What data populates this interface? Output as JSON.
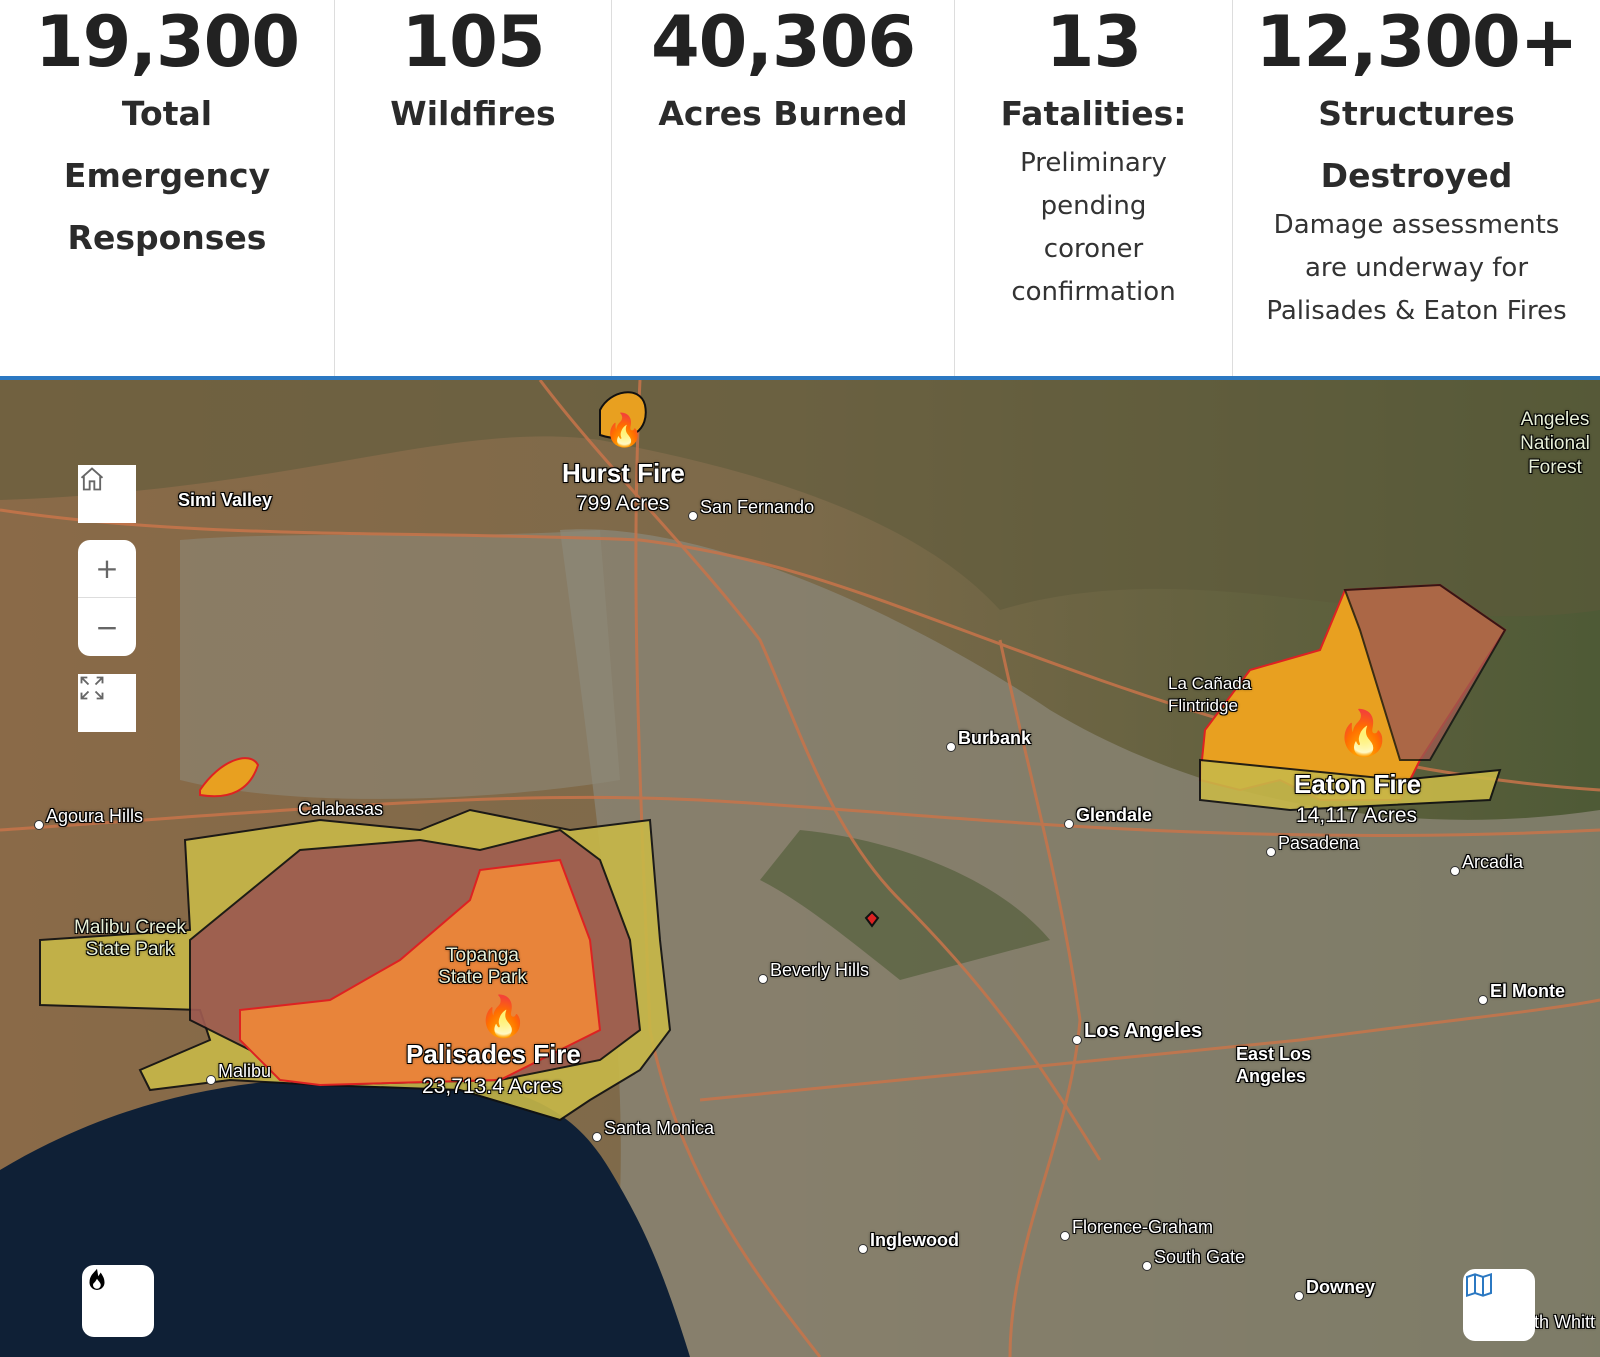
{
  "stats": [
    {
      "number": "19,300",
      "label": [
        "Total",
        "Emergency",
        "Responses"
      ],
      "sub": []
    },
    {
      "number": "105",
      "label": [
        "Wildfires"
      ],
      "sub": []
    },
    {
      "number": "40,306",
      "label": [
        "Acres Burned"
      ],
      "sub": []
    },
    {
      "number": "13",
      "label": [
        "Fatalities:"
      ],
      "sub": [
        "Preliminary",
        "pending",
        "coroner",
        "confirmation"
      ]
    },
    {
      "number": "12,300+",
      "label": [
        "Structures",
        "Destroyed"
      ],
      "sub": [
        "Damage assessments",
        "are underway for",
        "Palisades & Eaton Fires"
      ]
    }
  ],
  "accent": "#2b78c2",
  "fires": {
    "hurst": {
      "name": "Hurst Fire",
      "acres": "799 Acres"
    },
    "eaton": {
      "name": "Eaton Fire",
      "acres": "14,117 Acres"
    },
    "palisades": {
      "name": "Palisades Fire",
      "acres": "23,713.4 Acres"
    }
  },
  "places": {
    "simi": "Simi Valley",
    "sanfernando": "San Fernando",
    "angeles": "Angeles National Forest",
    "lacanada": "La Cañada Flintridge",
    "burbank": "Burbank",
    "agoura": "Agoura Hills",
    "calabasas": "Calabasas",
    "glendale": "Glendale",
    "pasadena": "Pasadena",
    "arcadia": "Arcadia",
    "malibucreek": "Malibu Creek State Park",
    "topanga": "Topanga State Park",
    "beverly": "Beverly Hills",
    "elmonte": "El Monte",
    "losangeles": "Los Angeles",
    "eastla": "East Los Angeles",
    "malibu": "Malibu",
    "santamonica": "Santa Monica",
    "inglewood": "Inglewood",
    "florence": "Florence-Graham",
    "southgate": "South Gate",
    "downey": "Downey",
    "southwhittier": "South Whitt"
  },
  "icons": {
    "home": "home-icon",
    "zoom_in": "plus-icon",
    "zoom_out": "minus-icon",
    "fullscreen": "expand-icon",
    "fire": "fire-icon",
    "basemap": "map-icon"
  }
}
